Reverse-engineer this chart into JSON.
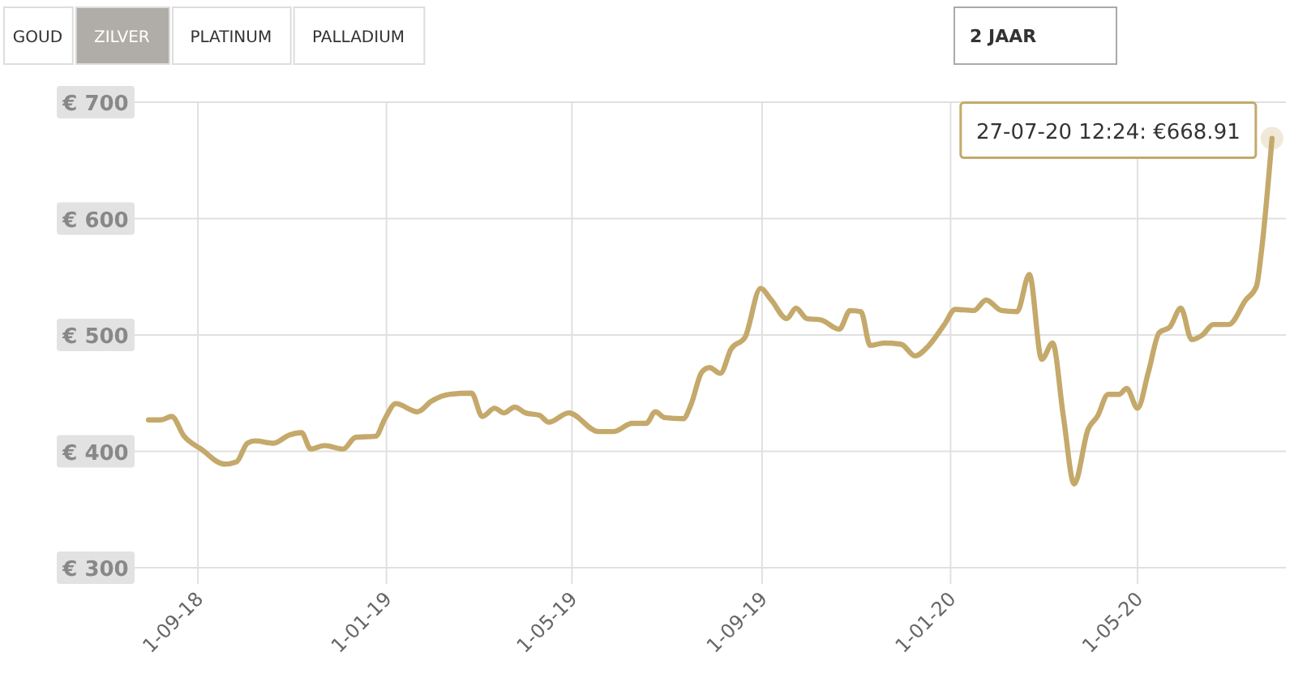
{
  "chart_data": {
    "type": "line",
    "xlim": [
      "2018-07-22",
      "2020-08-05"
    ],
    "xticks": [
      {
        "value": "2018-09-01",
        "label": "1-09-18"
      },
      {
        "value": "2019-01-01",
        "label": "1-01-19"
      },
      {
        "value": "2019-05-01",
        "label": "1-05-19"
      },
      {
        "value": "2019-09-01",
        "label": "1-09-19"
      },
      {
        "value": "2020-01-01",
        "label": "1-01-20"
      },
      {
        "value": "2020-05-01",
        "label": "1-05-20"
      }
    ],
    "ylim": [
      300,
      700
    ],
    "yticks": [
      {
        "value": 300,
        "label": "€ 300"
      },
      {
        "value": 400,
        "label": "€ 400"
      },
      {
        "value": 500,
        "label": "€ 500"
      },
      {
        "value": 600,
        "label": "€ 600"
      },
      {
        "value": 700,
        "label": "€ 700"
      }
    ],
    "grid": true,
    "marker": "none",
    "line_style": "solid",
    "x": [
      "2018-07-31",
      "2018-08-08",
      "2018-08-15",
      "2018-08-23",
      "2018-09-03",
      "2018-09-18",
      "2018-09-26",
      "2018-10-03",
      "2018-10-08",
      "2018-10-20",
      "2018-10-30",
      "2018-11-07",
      "2018-11-13",
      "2018-11-22",
      "2018-12-04",
      "2018-12-12",
      "2018-12-25",
      "2018-12-31",
      "2019-01-07",
      "2019-01-21",
      "2019-01-30",
      "2019-02-11",
      "2019-02-25",
      "2019-03-04",
      "2019-03-12",
      "2019-03-18",
      "2019-03-25",
      "2019-04-01",
      "2019-04-10",
      "2019-04-16",
      "2019-04-29",
      "2019-05-18",
      "2019-05-28",
      "2019-06-09",
      "2019-06-18",
      "2019-06-24",
      "2019-06-30",
      "2019-07-12",
      "2019-07-17",
      "2019-07-24",
      "2019-07-29",
      "2019-08-05",
      "2019-08-12",
      "2019-08-21",
      "2019-08-31",
      "2019-09-07",
      "2019-09-17",
      "2019-09-23",
      "2019-09-30",
      "2019-10-09",
      "2019-10-21",
      "2019-10-28",
      "2019-11-04",
      "2019-11-10",
      "2019-11-19",
      "2019-11-30",
      "2019-12-09",
      "2019-12-18",
      "2019-12-28",
      "2020-01-04",
      "2020-01-16",
      "2020-01-24",
      "2020-02-03",
      "2020-02-13",
      "2020-02-21",
      "2020-02-29",
      "2020-03-07",
      "2020-03-14",
      "2020-03-21",
      "2020-03-30",
      "2020-04-05",
      "2020-04-12",
      "2020-04-19",
      "2020-04-24",
      "2020-05-01",
      "2020-05-08",
      "2020-05-15",
      "2020-05-22",
      "2020-05-29",
      "2020-06-05",
      "2020-06-12",
      "2020-06-19",
      "2020-06-29",
      "2020-07-10",
      "2020-07-17",
      "2020-07-20",
      "2020-07-27"
    ],
    "series": [
      {
        "color": "#c4a96b",
        "values": [
          427,
          427,
          430,
          413,
          402,
          389,
          391,
          407,
          409,
          407,
          414,
          416,
          402,
          405,
          402,
          412,
          413,
          428,
          441,
          434,
          443,
          449,
          450,
          430,
          437,
          433,
          438,
          433,
          431,
          425,
          433,
          417,
          417,
          424,
          424,
          434,
          429,
          428,
          440,
          468,
          472,
          467,
          488,
          498,
          540,
          530,
          514,
          523,
          514,
          513,
          505,
          521,
          520,
          491,
          493,
          492,
          482,
          491,
          509,
          522,
          521,
          530,
          521,
          520,
          552,
          479,
          493,
          430,
          372,
          419,
          430,
          449,
          449,
          454,
          437,
          468,
          502,
          507,
          523,
          496,
          500,
          509,
          509,
          530,
          542,
          570,
          668.91
        ]
      }
    ],
    "annotations": [
      {
        "text": "27-07-20 12:24: €668.91",
        "x": "2020-07-27",
        "y": 668.91
      },
      "GOUD",
      "ZILVER",
      "PLATINUM",
      "PALLADIUM",
      "2 JAAR"
    ]
  }
}
